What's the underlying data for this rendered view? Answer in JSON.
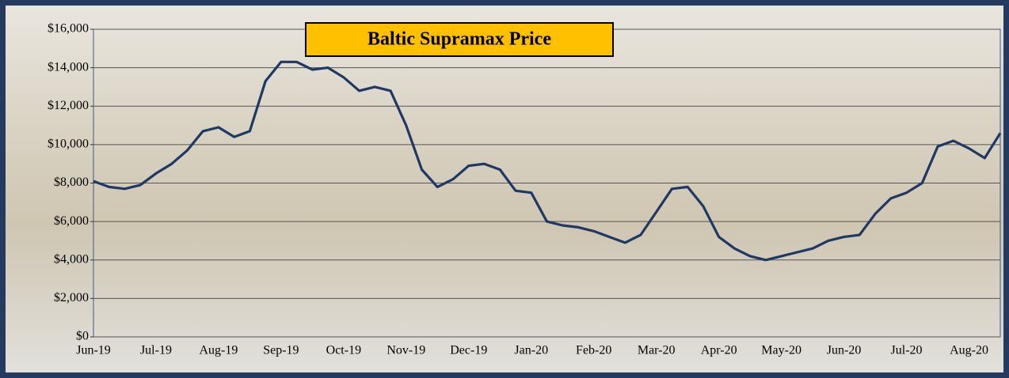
{
  "chart_data": {
    "type": "line",
    "title": "Baltic Supramax Price",
    "categories": [
      "Jun-19",
      null,
      null,
      null,
      "Jul-19",
      null,
      null,
      null,
      "Aug-19",
      null,
      null,
      null,
      "Sep-19",
      null,
      null,
      null,
      "Oct-19",
      null,
      null,
      null,
      "Nov-19",
      null,
      null,
      null,
      "Dec-19",
      null,
      null,
      null,
      "Jan-20",
      null,
      null,
      null,
      "Feb-20",
      null,
      null,
      null,
      "Mar-20",
      null,
      null,
      null,
      "Apr-20",
      null,
      null,
      null,
      "May-20",
      null,
      null,
      null,
      "Jun-20",
      null,
      null,
      null,
      "Jul-20",
      null,
      null,
      null,
      "Aug-20",
      null,
      null
    ],
    "series": [
      {
        "name": "Baltic Supramax Price",
        "color": "#1f3864",
        "values": [
          8100,
          7800,
          7700,
          7900,
          8500,
          9000,
          9700,
          10700,
          10900,
          10400,
          10700,
          13300,
          14300,
          14300,
          13900,
          14000,
          13500,
          12800,
          13000,
          12800,
          11000,
          8700,
          7800,
          8200,
          8900,
          9000,
          8700,
          7600,
          7500,
          6000,
          5800,
          5700,
          5500,
          5200,
          4900,
          5300,
          6500,
          7700,
          7800,
          6800,
          5200,
          4600,
          4200,
          4000,
          4200,
          4400,
          4600,
          5000,
          5200,
          5300,
          6400,
          7200,
          7500,
          8000,
          9900,
          10200,
          9800,
          9300,
          10600
        ]
      }
    ],
    "ylim": [
      0,
      16000
    ],
    "yticks": [
      {
        "value": 0,
        "label": "$0"
      },
      {
        "value": 2000,
        "label": "$2,000"
      },
      {
        "value": 4000,
        "label": "$4,000"
      },
      {
        "value": 6000,
        "label": "$6,000"
      },
      {
        "value": 8000,
        "label": "$8,000"
      },
      {
        "value": 10000,
        "label": "$10,000"
      },
      {
        "value": 12000,
        "label": "$12,000"
      },
      {
        "value": 14000,
        "label": "$14,000"
      },
      {
        "value": 16000,
        "label": "$16,000"
      }
    ],
    "grid": true
  }
}
